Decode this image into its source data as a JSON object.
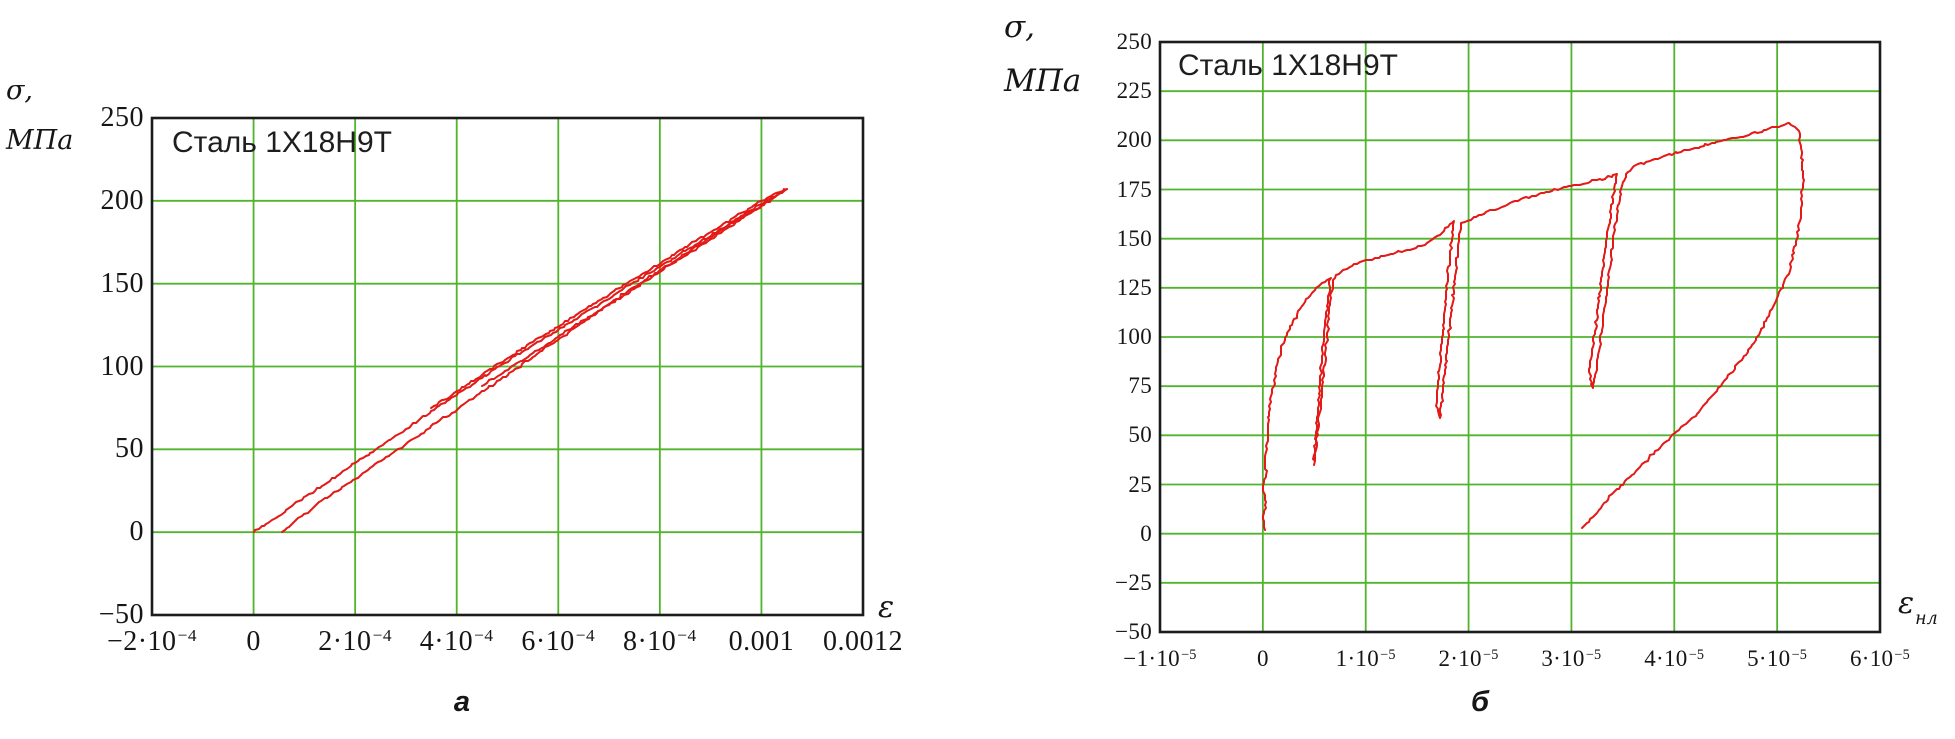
{
  "colors": {
    "grid": "#50b42e",
    "curve": "#e31a17",
    "border": "#1c1c1c",
    "text": "#161616",
    "background": "#ffffff"
  },
  "chart_data": [
    {
      "type": "line",
      "id": "left",
      "title": "Сталь 1X18Н9Т",
      "ylabel_line1": "σ,",
      "ylabel_line2": "МПа",
      "xlabel": "ε",
      "xlabel_sub": "",
      "caption": "а",
      "x_unit": 0.0001,
      "xlim": [
        -2,
        12
      ],
      "ylim": [
        -50,
        250
      ],
      "grid_on": true,
      "legend": "none",
      "grid_x": [
        0,
        2,
        4,
        6,
        8,
        10
      ],
      "grid_y": [
        200,
        150,
        100,
        50,
        0
      ],
      "x_ticks": [
        {
          "v": -2,
          "label": "−2·10^−4"
        },
        {
          "v": 0,
          "label": "0"
        },
        {
          "v": 2,
          "label": "2·10^−4"
        },
        {
          "v": 4,
          "label": "4·10^−4"
        },
        {
          "v": 6,
          "label": "6·10^−4"
        },
        {
          "v": 8,
          "label": "8·10^−4"
        },
        {
          "v": 10,
          "label": "0.001"
        },
        {
          "v": 12,
          "label": "0.0012"
        }
      ],
      "y_ticks": [
        {
          "v": 250,
          "label": "250"
        },
        {
          "v": 200,
          "label": "200"
        },
        {
          "v": 150,
          "label": "150"
        },
        {
          "v": 100,
          "label": "100"
        },
        {
          "v": 50,
          "label": "50"
        },
        {
          "v": 0,
          "label": "0"
        },
        {
          "v": -50,
          "label": "−50"
        }
      ],
      "series": [
        {
          "name": "loading-branch",
          "points": [
            [
              0,
              0
            ],
            [
              0.5,
              10
            ],
            [
              1,
              21
            ],
            [
              1.5,
              31
            ],
            [
              2,
              42
            ],
            [
              2.5,
              52
            ],
            [
              3,
              62
            ],
            [
              3.5,
              73
            ],
            [
              4,
              83
            ],
            [
              4.5,
              93
            ],
            [
              5,
              103
            ],
            [
              5.5,
              113
            ],
            [
              6,
              122
            ],
            [
              6.5,
              132
            ],
            [
              7,
              141
            ],
            [
              7.5,
              151
            ],
            [
              8,
              160
            ],
            [
              8.5,
              170
            ],
            [
              9,
              179
            ],
            [
              9.5,
              189
            ],
            [
              10,
              198
            ],
            [
              10.5,
              207
            ]
          ]
        },
        {
          "name": "unloading-branch",
          "points": [
            [
              10.5,
              207
            ],
            [
              10,
              197
            ],
            [
              9.5,
              187
            ],
            [
              9,
              177
            ],
            [
              8.5,
              167
            ],
            [
              8,
              157
            ],
            [
              7.5,
              147
            ],
            [
              7,
              137
            ],
            [
              6.5,
              127
            ],
            [
              6,
              116
            ],
            [
              5.5,
              106
            ],
            [
              5,
              95
            ],
            [
              4.5,
              85
            ],
            [
              4,
              74
            ],
            [
              3.5,
              64
            ],
            [
              3,
              53
            ],
            [
              2.5,
              43
            ],
            [
              2,
              32
            ],
            [
              1.5,
              22
            ],
            [
              1,
              11
            ],
            [
              0.75,
              5
            ],
            [
              0.55,
              0
            ]
          ]
        },
        {
          "name": "bundle-upper",
          "points": [
            [
              3.5,
              75
            ],
            [
              4,
              85
            ],
            [
              4.5,
              95
            ],
            [
              5,
              105
            ],
            [
              5.5,
              115
            ],
            [
              6,
              124
            ],
            [
              6.5,
              134
            ],
            [
              7,
              143
            ],
            [
              7.5,
              153
            ],
            [
              8,
              162
            ],
            [
              8.5,
              172
            ],
            [
              9,
              181
            ],
            [
              9.5,
              191
            ],
            [
              10,
              200
            ],
            [
              10.45,
              207
            ]
          ]
        },
        {
          "name": "bundle-lower",
          "points": [
            [
              4.5,
              88
            ],
            [
              5,
              98
            ],
            [
              5.5,
              108
            ],
            [
              6,
              118
            ],
            [
              6.5,
              128
            ],
            [
              7,
              138
            ],
            [
              7.5,
              148
            ],
            [
              8,
              158
            ],
            [
              8.5,
              168
            ],
            [
              9,
              178
            ],
            [
              9.5,
              188
            ],
            [
              10,
              197
            ],
            [
              10.45,
              206
            ]
          ]
        }
      ]
    },
    {
      "type": "line",
      "id": "right",
      "title": "Сталь 1X18Н9Т",
      "ylabel_line1": "σ,",
      "ylabel_line2": "МПа",
      "xlabel": "ε",
      "xlabel_sub": "нл",
      "caption": "б",
      "x_unit": 1e-05,
      "xlim": [
        -1,
        6
      ],
      "ylim": [
        -50,
        250
      ],
      "grid_on": true,
      "legend": "none",
      "grid_x": [
        0,
        1,
        2,
        3,
        4,
        5
      ],
      "grid_y": [
        225,
        200,
        175,
        150,
        125,
        100,
        75,
        50,
        25,
        0,
        -25
      ],
      "x_ticks": [
        {
          "v": -1,
          "label": "−1·10^−5"
        },
        {
          "v": 0,
          "label": "0"
        },
        {
          "v": 1,
          "label": "1·10^−5"
        },
        {
          "v": 2,
          "label": "2·10^−5"
        },
        {
          "v": 3,
          "label": "3·10^−5"
        },
        {
          "v": 4,
          "label": "4·10^−5"
        },
        {
          "v": 5,
          "label": "5·10^−5"
        },
        {
          "v": 6,
          "label": "6·10^−5"
        }
      ],
      "y_ticks": [
        {
          "v": 250,
          "label": "250"
        },
        {
          "v": 225,
          "label": "225"
        },
        {
          "v": 200,
          "label": "200"
        },
        {
          "v": 175,
          "label": "175"
        },
        {
          "v": 150,
          "label": "150"
        },
        {
          "v": 125,
          "label": "125"
        },
        {
          "v": 100,
          "label": "100"
        },
        {
          "v": 75,
          "label": "75"
        },
        {
          "v": 50,
          "label": "50"
        },
        {
          "v": 25,
          "label": "25"
        },
        {
          "v": 0,
          "label": "0"
        },
        {
          "v": -25,
          "label": "−25"
        },
        {
          "v": -50,
          "label": "−50"
        }
      ],
      "series": [
        {
          "name": "cyclic-trace",
          "points": [
            [
              0.02,
              2
            ],
            [
              0.0,
              9
            ],
            [
              0.03,
              16
            ],
            [
              0.0,
              23
            ],
            [
              0.03,
              30
            ],
            [
              0.02,
              38
            ],
            [
              0.04,
              46
            ],
            [
              0.05,
              54
            ],
            [
              0.06,
              62
            ],
            [
              0.08,
              70
            ],
            [
              0.11,
              78
            ],
            [
              0.14,
              86
            ],
            [
              0.18,
              94
            ],
            [
              0.23,
              101
            ],
            [
              0.29,
              108
            ],
            [
              0.36,
              114
            ],
            [
              0.44,
              120
            ],
            [
              0.52,
              125
            ],
            [
              0.6,
              128
            ],
            [
              0.66,
              130
            ],
            [
              0.645,
              122
            ],
            [
              0.615,
              110
            ],
            [
              0.585,
              96
            ],
            [
              0.56,
              80
            ],
            [
              0.54,
              64
            ],
            [
              0.52,
              50
            ],
            [
              0.495,
              40
            ],
            [
              0.5,
              35
            ],
            [
              0.525,
              46
            ],
            [
              0.555,
              62
            ],
            [
              0.59,
              80
            ],
            [
              0.625,
              100
            ],
            [
              0.655,
              118
            ],
            [
              0.685,
              129
            ],
            [
              0.76,
              133
            ],
            [
              0.89,
              137
            ],
            [
              1.0,
              139
            ],
            [
              1.15,
              141
            ],
            [
              1.3,
              143
            ],
            [
              1.46,
              145
            ],
            [
              1.6,
              148
            ],
            [
              1.72,
              152
            ],
            [
              1.8,
              156
            ],
            [
              1.86,
              159
            ],
            [
              1.84,
              150
            ],
            [
              1.8,
              132
            ],
            [
              1.77,
              115
            ],
            [
              1.74,
              97
            ],
            [
              1.71,
              80
            ],
            [
              1.69,
              67
            ],
            [
              1.72,
              59
            ],
            [
              1.75,
              72
            ],
            [
              1.79,
              92
            ],
            [
              1.83,
              112
            ],
            [
              1.87,
              131
            ],
            [
              1.9,
              147
            ],
            [
              1.93,
              158
            ],
            [
              2.1,
              162
            ],
            [
              2.4,
              168
            ],
            [
              2.7,
              173
            ],
            [
              3.0,
              177
            ],
            [
              3.3,
              180
            ],
            [
              3.44,
              183
            ],
            [
              3.4,
              170
            ],
            [
              3.35,
              152
            ],
            [
              3.3,
              133
            ],
            [
              3.25,
              112
            ],
            [
              3.21,
              95
            ],
            [
              3.17,
              82
            ],
            [
              3.21,
              74
            ],
            [
              3.26,
              90
            ],
            [
              3.32,
              113
            ],
            [
              3.38,
              138
            ],
            [
              3.44,
              162
            ],
            [
              3.49,
              177
            ],
            [
              3.53,
              183
            ],
            [
              3.61,
              187
            ],
            [
              3.9,
              192
            ],
            [
              4.2,
              196
            ],
            [
              4.5,
              200
            ],
            [
              4.78,
              204
            ],
            [
              5.02,
              207
            ],
            [
              5.12,
              209
            ],
            [
              5.21,
              205
            ],
            [
              5.24,
              193
            ],
            [
              5.25,
              178
            ],
            [
              5.23,
              164
            ],
            [
              5.18,
              147
            ],
            [
              5.1,
              131
            ],
            [
              4.95,
              114
            ],
            [
              4.76,
              96
            ],
            [
              4.51,
              79
            ],
            [
              4.22,
              61
            ],
            [
              3.9,
              46
            ],
            [
              3.63,
              32
            ],
            [
              3.41,
              21
            ],
            [
              3.27,
              12
            ],
            [
              3.17,
              6
            ],
            [
              3.1,
              3
            ]
          ]
        }
      ]
    }
  ]
}
